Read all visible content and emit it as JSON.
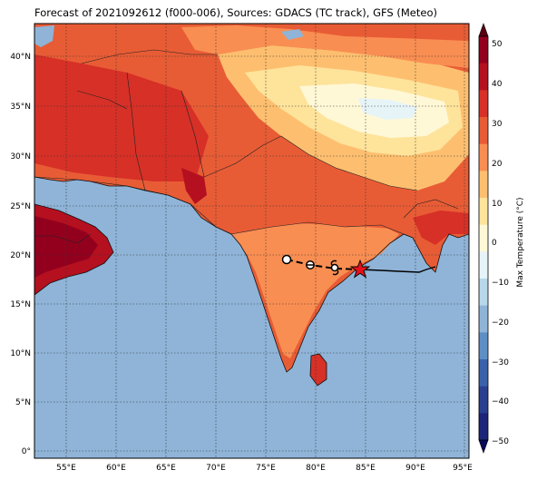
{
  "title": "Forecast of 2021092612 (f000-006), Sources: GDACS (TC track), GFS (Meteo)",
  "map": {
    "lat_labels": [
      "0°",
      "5°N",
      "10°N",
      "15°N",
      "20°N",
      "25°N",
      "30°N",
      "35°N",
      "40°N"
    ],
    "lon_labels": [
      "55°E",
      "60°E",
      "65°E",
      "70°E",
      "75°E",
      "80°E",
      "85°E",
      "90°E",
      "95°E"
    ],
    "ocean_color": "#8fb4d8"
  },
  "colorbar": {
    "label": "Max Temperature (°C)",
    "ticks": [
      "50",
      "40",
      "30",
      "20",
      "10",
      "0",
      "−10",
      "−20",
      "−30",
      "−40",
      "−50"
    ],
    "colors": [
      "#93001e",
      "#b5101f",
      "#d73027",
      "#e85c35",
      "#f98e52",
      "#fdbf6f",
      "#fee39b",
      "#fff8d6",
      "#e6f4f8",
      "#b7d8ea",
      "#8fb4d8",
      "#5d8fc4",
      "#3a62ab",
      "#29408f",
      "#1c2578"
    ]
  },
  "track": {
    "storm_marker": "red-star",
    "points_symbols": [
      "open-circle",
      "circle-minus",
      "cyclone-symbol",
      "star"
    ]
  }
}
